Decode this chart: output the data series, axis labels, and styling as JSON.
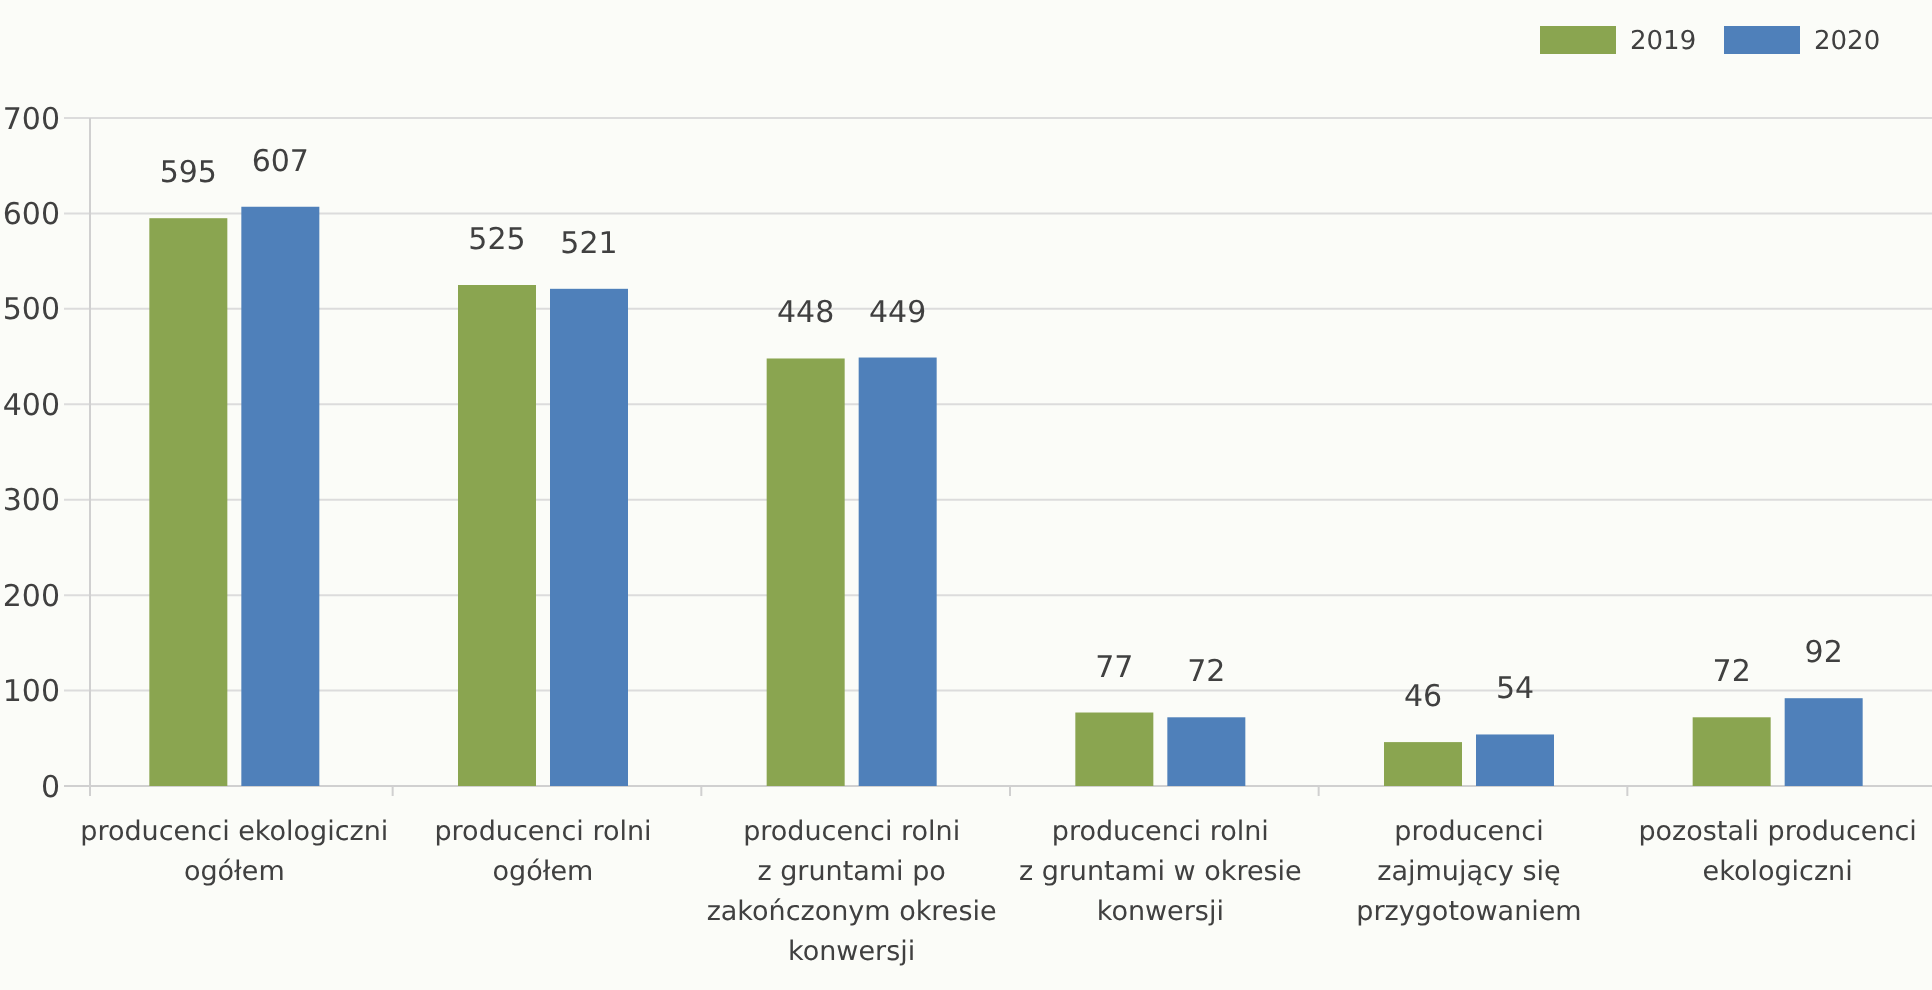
{
  "chart_data": {
    "type": "bar",
    "categories": [
      "producenci ekologiczni\nogółem",
      "producenci rolni\nogółem",
      "producenci rolni\nz gruntami po\nzakończonym okresie\nkonwersji",
      "producenci rolni\nz gruntami w okresie\nkonwersji",
      "producenci\nzajmujący się\nprzygotowaniem",
      "pozostali producenci\nekologiczni"
    ],
    "series": [
      {
        "name": "2019",
        "color": "#8aa550",
        "values": [
          595,
          525,
          448,
          77,
          46,
          72
        ]
      },
      {
        "name": "2020",
        "color": "#4f80ba",
        "values": [
          607,
          521,
          449,
          72,
          54,
          92
        ]
      }
    ],
    "ylim": [
      0,
      700
    ],
    "yticks": [
      0,
      100,
      200,
      300,
      400,
      500,
      600,
      700
    ],
    "grid": "y",
    "legend": "top right",
    "data_labels": true
  }
}
